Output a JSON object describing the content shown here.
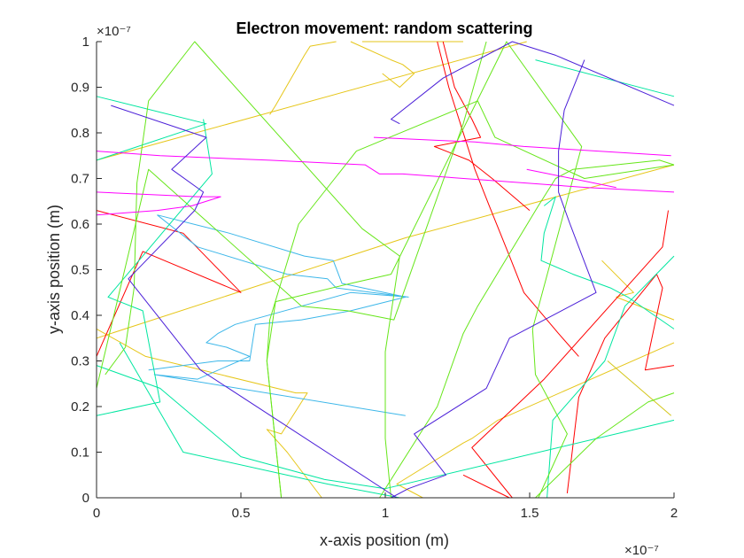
{
  "chart_data": {
    "type": "line",
    "title": "Electron movement: random scattering",
    "xlabel": "x-axis position (m)",
    "ylabel": "y-axis position (m)",
    "x_exponent_label": "×10⁻⁷",
    "y_exponent_label": "×10⁻⁷",
    "x_scale_note": "tick values are multiples of 1e-7 m",
    "xlim": [
      0,
      2
    ],
    "ylim": [
      0,
      1
    ],
    "xticks": [
      "0",
      "0.5",
      "1",
      "1.5",
      "2"
    ],
    "xtick_values": [
      0,
      0.5,
      1,
      1.5,
      2
    ],
    "yticks": [
      "0",
      "0.1",
      "0.2",
      "0.3",
      "0.4",
      "0.5",
      "0.6",
      "0.7",
      "0.8",
      "0.9",
      "1"
    ],
    "ytick_values": [
      0,
      0.1,
      0.2,
      0.3,
      0.4,
      0.5,
      0.6,
      0.7,
      0.8,
      0.9,
      1
    ],
    "grid": false,
    "legend": "none",
    "series": [
      {
        "color": "#e6c619",
        "points": [
          [
            0.0,
            0.35
          ],
          [
            1.07,
            0.57
          ],
          [
            2.0,
            0.73
          ]
        ]
      },
      {
        "color": "#e6c619",
        "points": [
          [
            0.0,
            0.74
          ],
          [
            1.49,
            1.0
          ]
        ]
      },
      {
        "color": "#e6c619",
        "points": [
          [
            0.92,
            1.0
          ],
          [
            1.27,
            1.0
          ]
        ]
      },
      {
        "color": "#e6c619",
        "points": [
          [
            0.6,
            0.84
          ],
          [
            0.62,
            0.86
          ],
          [
            0.72,
            0.97
          ],
          [
            0.74,
            0.99
          ],
          [
            0.83,
            1.0
          ]
        ]
      },
      {
        "color": "#e6c619",
        "points": [
          [
            0.88,
            1.0
          ],
          [
            1.02,
            0.96
          ],
          [
            1.06,
            0.95
          ],
          [
            1.1,
            0.93
          ],
          [
            1.05,
            0.9
          ],
          [
            0.99,
            0.93
          ]
        ]
      },
      {
        "color": "#e6c619",
        "points": [
          [
            0.0,
            0.37
          ],
          [
            0.17,
            0.31
          ],
          [
            0.69,
            0.23
          ],
          [
            0.73,
            0.23
          ],
          [
            0.64,
            0.14
          ],
          [
            0.59,
            0.15
          ],
          [
            0.66,
            0.1
          ],
          [
            0.78,
            0.0
          ]
        ]
      },
      {
        "color": "#e6c619",
        "points": [
          [
            1.13,
            0.0
          ],
          [
            1.04,
            0.03
          ],
          [
            1.27,
            0.12
          ],
          [
            1.3,
            0.13
          ],
          [
            1.39,
            0.17
          ],
          [
            2.0,
            0.34
          ]
        ]
      },
      {
        "color": "#e6c619",
        "points": [
          [
            1.75,
            0.52
          ],
          [
            1.86,
            0.45
          ],
          [
            1.8,
            0.44
          ],
          [
            2.0,
            0.39
          ]
        ]
      },
      {
        "color": "#d4c619",
        "points": [
          [
            1.77,
            0.3
          ],
          [
            1.99,
            0.18
          ]
        ]
      },
      {
        "color": "#ff0000",
        "points": [
          [
            0.0,
            0.63
          ],
          [
            0.3,
            0.58
          ],
          [
            0.5,
            0.45
          ],
          [
            0.16,
            0.54
          ],
          [
            0.0,
            0.31
          ]
        ]
      },
      {
        "color": "#ff0000",
        "points": [
          [
            1.2,
            1.0
          ],
          [
            1.24,
            0.9
          ],
          [
            1.3,
            0.83
          ],
          [
            1.33,
            0.79
          ],
          [
            1.17,
            0.77
          ],
          [
            1.29,
            0.74
          ],
          [
            1.37,
            0.7
          ],
          [
            1.5,
            0.63
          ]
        ]
      },
      {
        "color": "#ff0000",
        "points": [
          [
            1.18,
            1.0
          ],
          [
            1.22,
            0.9
          ],
          [
            1.26,
            0.82
          ],
          [
            1.31,
            0.72
          ],
          [
            1.36,
            0.64
          ],
          [
            1.43,
            0.53
          ],
          [
            1.48,
            0.45
          ],
          [
            1.6,
            0.36
          ],
          [
            1.67,
            0.31
          ]
        ]
      },
      {
        "color": "#ff0000",
        "points": [
          [
            1.27,
            0.05
          ],
          [
            1.43,
            0.0
          ]
        ]
      },
      {
        "color": "#ff0000",
        "points": [
          [
            1.44,
            0.0
          ],
          [
            1.3,
            0.11
          ],
          [
            1.55,
            0.26
          ],
          [
            1.96,
            0.55
          ],
          [
            1.98,
            0.63
          ]
        ]
      },
      {
        "color": "#ff0000",
        "points": [
          [
            1.63,
            0.01
          ],
          [
            1.67,
            0.22
          ],
          [
            1.76,
            0.35
          ],
          [
            1.94,
            0.49
          ],
          [
            1.96,
            0.46
          ],
          [
            1.9,
            0.28
          ],
          [
            2.0,
            0.29
          ]
        ]
      },
      {
        "color": "#3db7e9",
        "points": [
          [
            0.21,
            0.62
          ],
          [
            0.35,
            0.55
          ],
          [
            0.66,
            0.49
          ],
          [
            0.8,
            0.48
          ],
          [
            0.83,
            0.46
          ],
          [
            1.08,
            0.44
          ],
          [
            0.88,
            0.45
          ],
          [
            0.48,
            0.38
          ],
          [
            0.42,
            0.36
          ],
          [
            0.38,
            0.34
          ],
          [
            0.45,
            0.33
          ],
          [
            0.53,
            0.31
          ],
          [
            0.35,
            0.26
          ],
          [
            0.2,
            0.27
          ],
          [
            1.07,
            0.18
          ]
        ]
      },
      {
        "color": "#3db7e9",
        "points": [
          [
            0.21,
            0.62
          ],
          [
            0.46,
            0.58
          ],
          [
            0.72,
            0.53
          ],
          [
            0.82,
            0.52
          ],
          [
            0.85,
            0.47
          ],
          [
            1.07,
            0.44
          ],
          [
            0.88,
            0.41
          ],
          [
            0.71,
            0.39
          ],
          [
            0.55,
            0.38
          ],
          [
            0.53,
            0.3
          ],
          [
            0.42,
            0.3
          ],
          [
            0.18,
            0.28
          ]
        ]
      },
      {
        "color": "#00e6a0",
        "points": [
          [
            0.0,
            0.88
          ],
          [
            0.38,
            0.82
          ],
          [
            0.0,
            0.74
          ]
        ]
      },
      {
        "color": "#00e6a0",
        "points": [
          [
            0.0,
            0.18
          ],
          [
            0.22,
            0.21
          ],
          [
            0.16,
            0.41
          ],
          [
            0.04,
            0.44
          ],
          [
            0.4,
            0.71
          ],
          [
            0.37,
            0.83
          ]
        ]
      },
      {
        "color": "#00e6a0",
        "points": [
          [
            0.0,
            0.29
          ],
          [
            0.22,
            0.24
          ],
          [
            0.5,
            0.09
          ],
          [
            0.79,
            0.04
          ],
          [
            1.0,
            0.02
          ],
          [
            2.0,
            0.17
          ]
        ]
      },
      {
        "color": "#00e6a0",
        "points": [
          [
            0.08,
            0.34
          ],
          [
            0.3,
            0.1
          ],
          [
            0.8,
            0.03
          ],
          [
            1.05,
            0.0
          ]
        ]
      },
      {
        "color": "#00e6a0",
        "points": [
          [
            1.52,
            0.96
          ],
          [
            2.0,
            0.88
          ]
        ]
      },
      {
        "color": "#00e6a0",
        "points": [
          [
            1.55,
            0.64
          ],
          [
            1.59,
            0.66
          ],
          [
            1.55,
            0.58
          ],
          [
            1.54,
            0.52
          ],
          [
            1.65,
            0.49
          ],
          [
            1.78,
            0.46
          ],
          [
            1.84,
            0.44
          ],
          [
            2.0,
            0.37
          ]
        ]
      },
      {
        "color": "#00e6a0",
        "points": [
          [
            1.56,
            0.0
          ],
          [
            1.58,
            0.17
          ],
          [
            1.76,
            0.3
          ],
          [
            1.83,
            0.42
          ],
          [
            2.0,
            0.53
          ]
        ]
      },
      {
        "color": "#66e619",
        "points": [
          [
            0.03,
            0.27
          ],
          [
            0.1,
            0.33
          ],
          [
            0.13,
            0.46
          ],
          [
            0.14,
            0.69
          ],
          [
            0.18,
            0.87
          ],
          [
            0.34,
            1.0
          ],
          [
            0.92,
            0.59
          ],
          [
            1.05,
            0.53
          ],
          [
            1.0,
            0.32
          ],
          [
            1.0,
            0.13
          ],
          [
            1.02,
            0.0
          ]
        ]
      },
      {
        "color": "#66e619",
        "points": [
          [
            0.0,
            0.24
          ],
          [
            0.18,
            0.72
          ],
          [
            0.71,
            0.42
          ],
          [
            0.87,
            0.41
          ],
          [
            1.03,
            0.39
          ],
          [
            1.27,
            0.82
          ],
          [
            1.35,
            1.0
          ]
        ]
      },
      {
        "color": "#66e619",
        "points": [
          [
            0.64,
            0.0
          ],
          [
            0.59,
            0.3
          ],
          [
            0.62,
            0.43
          ],
          [
            0.88,
            0.47
          ],
          [
            1.02,
            0.49
          ],
          [
            1.42,
            1.0
          ],
          [
            1.68,
            0.77
          ],
          [
            1.51,
            0.37
          ],
          [
            1.52,
            0.27
          ],
          [
            1.63,
            0.14
          ],
          [
            1.53,
            0.0
          ]
        ]
      },
      {
        "color": "#66e619",
        "points": [
          [
            0.64,
            0.0
          ],
          [
            0.59,
            0.3
          ],
          [
            0.6,
            0.39
          ],
          [
            0.7,
            0.6
          ],
          [
            0.9,
            0.76
          ],
          [
            1.32,
            0.87
          ],
          [
            1.38,
            0.79
          ],
          [
            1.69,
            0.7
          ],
          [
            2.0,
            0.73
          ]
        ]
      },
      {
        "color": "#66e619",
        "points": [
          [
            0.98,
            0.0
          ],
          [
            1.18,
            0.2
          ],
          [
            1.27,
            0.36
          ],
          [
            1.32,
            0.42
          ],
          [
            1.53,
            0.64
          ],
          [
            1.59,
            0.7
          ],
          [
            1.65,
            0.72
          ],
          [
            1.95,
            0.74
          ],
          [
            2.0,
            0.73
          ]
        ]
      },
      {
        "color": "#66e619",
        "points": [
          [
            1.52,
            0.0
          ],
          [
            1.73,
            0.13
          ],
          [
            1.91,
            0.21
          ],
          [
            2.0,
            0.23
          ]
        ]
      },
      {
        "color": "#ff00ff",
        "points": [
          [
            0.0,
            0.76
          ],
          [
            0.22,
            0.75
          ],
          [
            0.6,
            0.74
          ],
          [
            0.93,
            0.73
          ],
          [
            0.98,
            0.71
          ],
          [
            1.06,
            0.71
          ],
          [
            1.7,
            0.68
          ],
          [
            2.0,
            0.67
          ]
        ]
      },
      {
        "color": "#ff00ff",
        "points": [
          [
            0.0,
            0.67
          ],
          [
            0.35,
            0.66
          ],
          [
            0.43,
            0.66
          ],
          [
            0.33,
            0.64
          ],
          [
            0.21,
            0.63
          ],
          [
            0.0,
            0.62
          ]
        ]
      },
      {
        "color": "#ff00ff",
        "points": [
          [
            0.96,
            0.79
          ],
          [
            1.31,
            0.78
          ],
          [
            1.48,
            0.77
          ],
          [
            1.99,
            0.75
          ]
        ]
      },
      {
        "color": "#ff00ff",
        "points": [
          [
            1.49,
            0.72
          ],
          [
            1.8,
            0.68
          ]
        ]
      },
      {
        "color": "#4b1fd8",
        "points": [
          [
            0.05,
            0.86
          ],
          [
            0.38,
            0.79
          ],
          [
            0.26,
            0.72
          ],
          [
            0.37,
            0.67
          ],
          [
            0.34,
            0.63
          ],
          [
            0.11,
            0.48
          ],
          [
            0.36,
            0.28
          ],
          [
            1.04,
            0.0
          ]
        ]
      },
      {
        "color": "#4b1fd8",
        "points": [
          [
            1.05,
            0.82
          ],
          [
            1.02,
            0.83
          ],
          [
            1.2,
            0.92
          ],
          [
            1.44,
            1.0
          ],
          [
            1.59,
            0.97
          ],
          [
            2.0,
            0.86
          ]
        ]
      },
      {
        "color": "#4b1fd8",
        "points": [
          [
            1.69,
            0.96
          ],
          [
            1.62,
            0.85
          ],
          [
            1.6,
            0.76
          ],
          [
            1.6,
            0.67
          ],
          [
            1.64,
            0.6
          ],
          [
            1.73,
            0.45
          ],
          [
            1.43,
            0.35
          ],
          [
            1.35,
            0.24
          ],
          [
            1.1,
            0.14
          ],
          [
            1.21,
            0.05
          ],
          [
            1.08,
            0.02
          ],
          [
            1.02,
            0.0
          ]
        ]
      }
    ]
  }
}
